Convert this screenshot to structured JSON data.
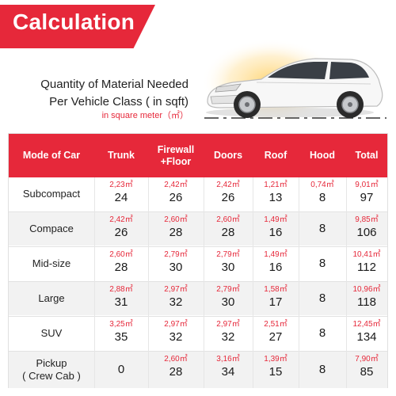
{
  "banner": {
    "title": "Calculation"
  },
  "subtitle": {
    "line1": "Quantity of Material Needed",
    "line2": "Per Vehicle Class ( in sqft)",
    "unit_note": "in square meter（㎡）"
  },
  "colors": {
    "accent": "#e6283a",
    "row_shade": "#f2f2f2"
  },
  "illustration": "white-hatchback-car",
  "table": {
    "headers": [
      "Mode of Car",
      "Trunk",
      "Firewall\n+Floor",
      "Doors",
      "Roof",
      "Hood",
      "Total"
    ],
    "rows": [
      {
        "mode": "Subcompact",
        "cells": [
          {
            "sqm": "2,23㎡",
            "sqft": "24"
          },
          {
            "sqm": "2,42㎡",
            "sqft": "26"
          },
          {
            "sqm": "2,42㎡",
            "sqft": "26"
          },
          {
            "sqm": "1,21㎡",
            "sqft": "13"
          },
          {
            "sqm": "0,74㎡",
            "sqft": "8"
          },
          {
            "sqm": "9,01㎡",
            "sqft": "97"
          }
        ]
      },
      {
        "mode": "Compace",
        "cells": [
          {
            "sqm": "2,42㎡",
            "sqft": "26"
          },
          {
            "sqm": "2,60㎡",
            "sqft": "28"
          },
          {
            "sqm": "2,60㎡",
            "sqft": "28"
          },
          {
            "sqm": "1,49㎡",
            "sqft": "16"
          },
          {
            "sqm": "",
            "sqft": "8"
          },
          {
            "sqm": "9,85㎡",
            "sqft": "106"
          }
        ]
      },
      {
        "mode": "Mid-size",
        "cells": [
          {
            "sqm": "2,60㎡",
            "sqft": "28"
          },
          {
            "sqm": "2,79㎡",
            "sqft": "30"
          },
          {
            "sqm": "2,79㎡",
            "sqft": "30"
          },
          {
            "sqm": "1,49㎡",
            "sqft": "16"
          },
          {
            "sqm": "",
            "sqft": "8"
          },
          {
            "sqm": "10,41㎡",
            "sqft": "112"
          }
        ]
      },
      {
        "mode": "Large",
        "cells": [
          {
            "sqm": "2,88㎡",
            "sqft": "31"
          },
          {
            "sqm": "2,97㎡",
            "sqft": "32"
          },
          {
            "sqm": "2,79㎡",
            "sqft": "30"
          },
          {
            "sqm": "1,58㎡",
            "sqft": "17"
          },
          {
            "sqm": "",
            "sqft": "8"
          },
          {
            "sqm": "10,96㎡",
            "sqft": "118"
          }
        ]
      },
      {
        "mode": "SUV",
        "cells": [
          {
            "sqm": "3,25㎡",
            "sqft": "35"
          },
          {
            "sqm": "2,97㎡",
            "sqft": "32"
          },
          {
            "sqm": "2,97㎡",
            "sqft": "32"
          },
          {
            "sqm": "2,51㎡",
            "sqft": "27"
          },
          {
            "sqm": "",
            "sqft": "8"
          },
          {
            "sqm": "12,45㎡",
            "sqft": "134"
          }
        ]
      },
      {
        "mode": "Pickup\n( Crew Cab )",
        "cells": [
          {
            "sqm": "",
            "sqft": "0"
          },
          {
            "sqm": "2,60㎡",
            "sqft": "28"
          },
          {
            "sqm": "3,16㎡",
            "sqft": "34"
          },
          {
            "sqm": "1,39㎡",
            "sqft": "15"
          },
          {
            "sqm": "",
            "sqft": "8"
          },
          {
            "sqm": "7,90㎡",
            "sqft": "85"
          }
        ]
      }
    ]
  }
}
